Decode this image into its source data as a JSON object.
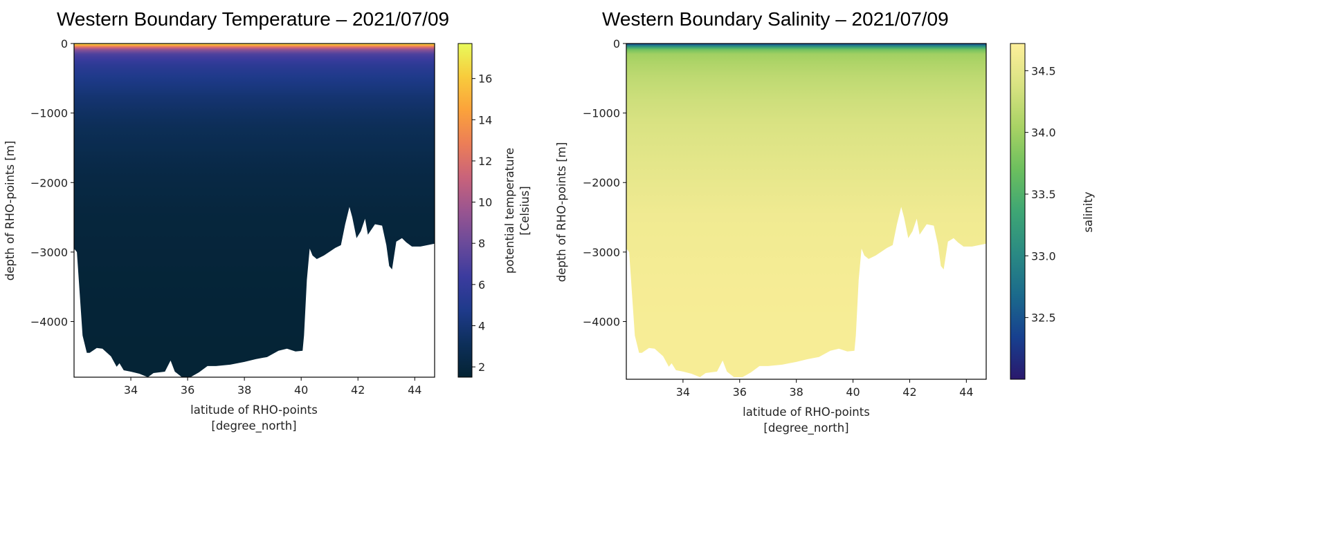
{
  "chart_data": [
    {
      "type": "heatmap",
      "title": "Western Boundary Temperature – 2021/07/09",
      "xlabel": "latitude of RHO-points",
      "xlabel_units": "[degree_north]",
      "ylabel": "depth of RHO-points [m]",
      "xlim": [
        32.0,
        44.7
      ],
      "ylim": [
        -4800,
        0
      ],
      "xticks": [
        "34",
        "36",
        "38",
        "40",
        "42",
        "44"
      ],
      "xtick_values": [
        34,
        36,
        38,
        40,
        42,
        44
      ],
      "yticks": [
        "0",
        "−1000",
        "−2000",
        "−3000",
        "−4000"
      ],
      "ytick_values": [
        0,
        -1000,
        -2000,
        -3000,
        -4000
      ],
      "colorbar": {
        "label": "potential temperature",
        "label_units": "[Celsius]",
        "range": [
          1.5,
          17.7
        ],
        "ticks": [
          "2",
          "4",
          "6",
          "8",
          "10",
          "12",
          "14",
          "16"
        ],
        "tick_values": [
          2,
          4,
          6,
          8,
          10,
          12,
          14,
          16
        ],
        "colormap": [
          "#042333",
          "#0d2f5a",
          "#1e3a8a",
          "#3b3b9e",
          "#6a4a9a",
          "#9a5590",
          "#c9637a",
          "#ec7e57",
          "#fba23b",
          "#f8cb3c",
          "#e8fa5b"
        ]
      },
      "profile_depth": [
        0,
        -30,
        -80,
        -150,
        -300,
        -500,
        -800,
        -1200,
        -1800,
        -2500,
        -3500,
        -4800
      ],
      "profile_values": [
        17.2,
        14.0,
        9.5,
        7.0,
        5.6,
        4.7,
        3.8,
        3.0,
        2.3,
        1.9,
        1.7,
        1.6
      ]
    },
    {
      "type": "heatmap",
      "title": "Western Boundary Salinity – 2021/07/09",
      "xlabel": "latitude of RHO-points",
      "xlabel_units": "[degree_north]",
      "ylabel": "depth of RHO-points [m]",
      "xlim": [
        32.0,
        44.7
      ],
      "ylim": [
        -4830,
        0
      ],
      "xticks": [
        "34",
        "36",
        "38",
        "40",
        "42",
        "44"
      ],
      "xtick_values": [
        34,
        36,
        38,
        40,
        42,
        44
      ],
      "yticks": [
        "0",
        "−1000",
        "−2000",
        "−3000",
        "−4000"
      ],
      "ytick_values": [
        0,
        -1000,
        -2000,
        -3000,
        -4000
      ],
      "colorbar": {
        "label": "salinity",
        "range": [
          32.0,
          34.72
        ],
        "ticks": [
          "32.5",
          "33.0",
          "33.5",
          "34.0",
          "34.5"
        ],
        "tick_values": [
          32.5,
          33.0,
          33.5,
          34.0,
          34.5
        ],
        "colormap": [
          "#2a186c",
          "#17408f",
          "#1b6a8c",
          "#2a8a83",
          "#3ea674",
          "#6cbf5e",
          "#a8d264",
          "#d8e282",
          "#fdef9a"
        ]
      },
      "profile_depth": [
        0,
        -30,
        -80,
        -150,
        -300,
        -500,
        -800,
        -1200,
        -1800,
        -2500,
        -3500,
        -4830
      ],
      "profile_values": [
        32.3,
        32.9,
        33.7,
        34.0,
        34.1,
        34.2,
        34.3,
        34.4,
        34.5,
        34.6,
        34.65,
        34.67
      ]
    }
  ],
  "bathymetry": {
    "lat": [
      32.0,
      32.1,
      32.2,
      32.3,
      32.45,
      32.55,
      32.8,
      33.0,
      33.3,
      33.5,
      33.6,
      33.75,
      34.0,
      34.3,
      34.6,
      34.8,
      35.2,
      35.4,
      35.55,
      35.8,
      36.1,
      36.4,
      36.7,
      37.0,
      37.5,
      38.0,
      38.4,
      38.8,
      39.2,
      39.5,
      39.8,
      40.05,
      40.1,
      40.2,
      40.3,
      40.4,
      40.55,
      40.8,
      41.2,
      41.4,
      41.55,
      41.7,
      41.8,
      41.95,
      42.1,
      42.25,
      42.35,
      42.6,
      42.85,
      43.0,
      43.1,
      43.2,
      43.35,
      43.55,
      43.7,
      43.9,
      44.2,
      44.7
    ],
    "depth": [
      -2950,
      -3000,
      -3600,
      -4200,
      -4450,
      -4450,
      -4380,
      -4390,
      -4500,
      -4650,
      -4600,
      -4700,
      -4720,
      -4750,
      -4800,
      -4740,
      -4720,
      -4560,
      -4720,
      -4800,
      -4800,
      -4730,
      -4640,
      -4640,
      -4620,
      -4580,
      -4540,
      -4510,
      -4420,
      -4390,
      -4430,
      -4420,
      -4200,
      -3400,
      -2950,
      -3050,
      -3100,
      -3050,
      -2940,
      -2900,
      -2600,
      -2350,
      -2500,
      -2800,
      -2700,
      -2520,
      -2750,
      -2600,
      -2620,
      -2900,
      -3200,
      -3250,
      -2850,
      -2800,
      -2860,
      -2920,
      -2920,
      -2880
    ]
  }
}
